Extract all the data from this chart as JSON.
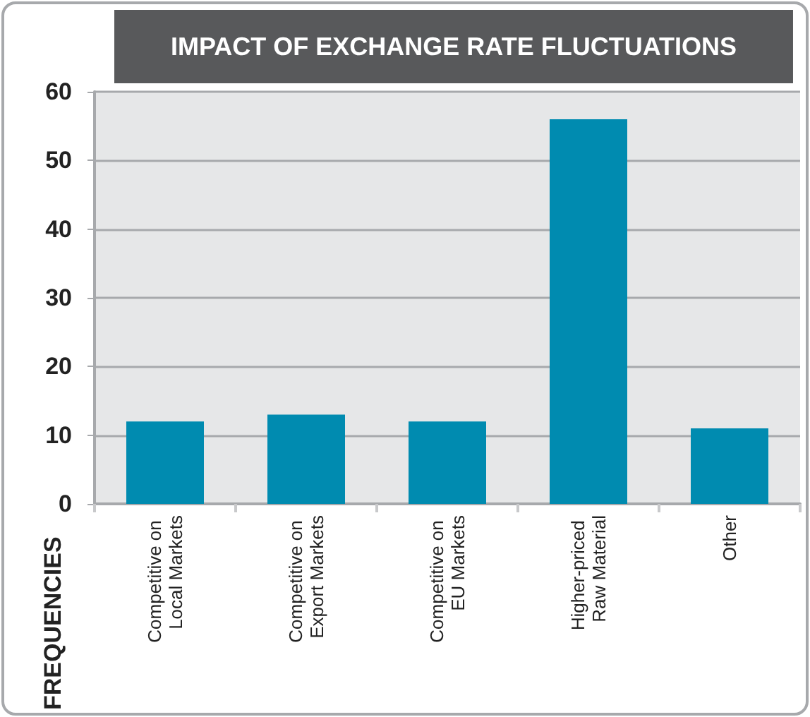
{
  "chart_data": {
    "type": "bar",
    "title": "IMPACT OF EXCHANGE RATE FLUCTUATIONS",
    "ylabel": "FREQUENCIES",
    "categories": [
      "Competitive on Local Markets",
      "Competitive on Export Markets",
      "Competitive on EU Markets",
      "Higher-priced Raw Material",
      "Other"
    ],
    "values": [
      12,
      13,
      12,
      56,
      11
    ],
    "color": "#008bb0",
    "ylim": [
      0,
      60
    ],
    "yticks": [
      0,
      10,
      20,
      30,
      40,
      50,
      60
    ],
    "grid": "y"
  }
}
